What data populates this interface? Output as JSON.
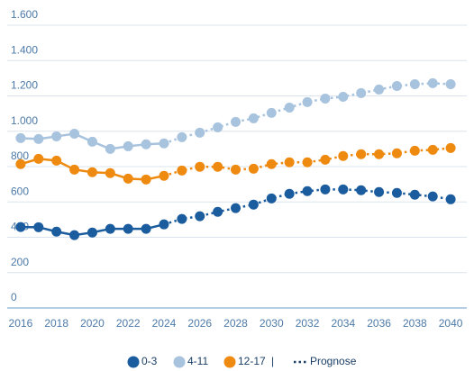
{
  "chart_data": {
    "type": "line",
    "x": [
      2016,
      2017,
      2018,
      2019,
      2020,
      2021,
      2022,
      2023,
      2024,
      2025,
      2026,
      2027,
      2028,
      2029,
      2030,
      2031,
      2032,
      2033,
      2034,
      2035,
      2036,
      2037,
      2038,
      2039,
      2040
    ],
    "series": [
      {
        "name": "0-3",
        "color": "#1b5c9e",
        "values": [
          458,
          457,
          432,
          412,
          427,
          448,
          448,
          448,
          473,
          504,
          519,
          544,
          565,
          585,
          620,
          646,
          661,
          671,
          671,
          666,
          656,
          651,
          641,
          631,
          615
        ]
      },
      {
        "name": "4-11",
        "color": "#a8c3de",
        "values": [
          961,
          956,
          971,
          986,
          941,
          900,
          915,
          926,
          931,
          966,
          992,
          1022,
          1053,
          1073,
          1104,
          1134,
          1165,
          1185,
          1195,
          1216,
          1236,
          1256,
          1266,
          1272,
          1266
        ]
      },
      {
        "name": "12-17",
        "color": "#ef8a10",
        "values": [
          814,
          844,
          834,
          783,
          768,
          763,
          732,
          727,
          748,
          778,
          799,
          799,
          783,
          788,
          814,
          824,
          824,
          839,
          860,
          870,
          870,
          875,
          890,
          895,
          905
        ]
      }
    ],
    "xlim": [
      2015.25,
      2040.9
    ],
    "xticks": [
      2016,
      2018,
      2020,
      2022,
      2024,
      2026,
      2028,
      2030,
      2032,
      2034,
      2036,
      2038,
      2040
    ],
    "ylim": [
      0,
      1600
    ],
    "yticks": [
      0,
      200,
      400,
      600,
      {
        "value": 800,
        "label": "800"
      },
      {
        "value": 1000,
        "label": "1.000"
      },
      {
        "value": 1200,
        "label": "1.200"
      },
      {
        "value": 1400,
        "label": "1.400"
      },
      {
        "value": 1600,
        "label": "1.600"
      }
    ],
    "grid": true,
    "prognosis_from": 2024,
    "prognosis_label": "Prognose"
  }
}
